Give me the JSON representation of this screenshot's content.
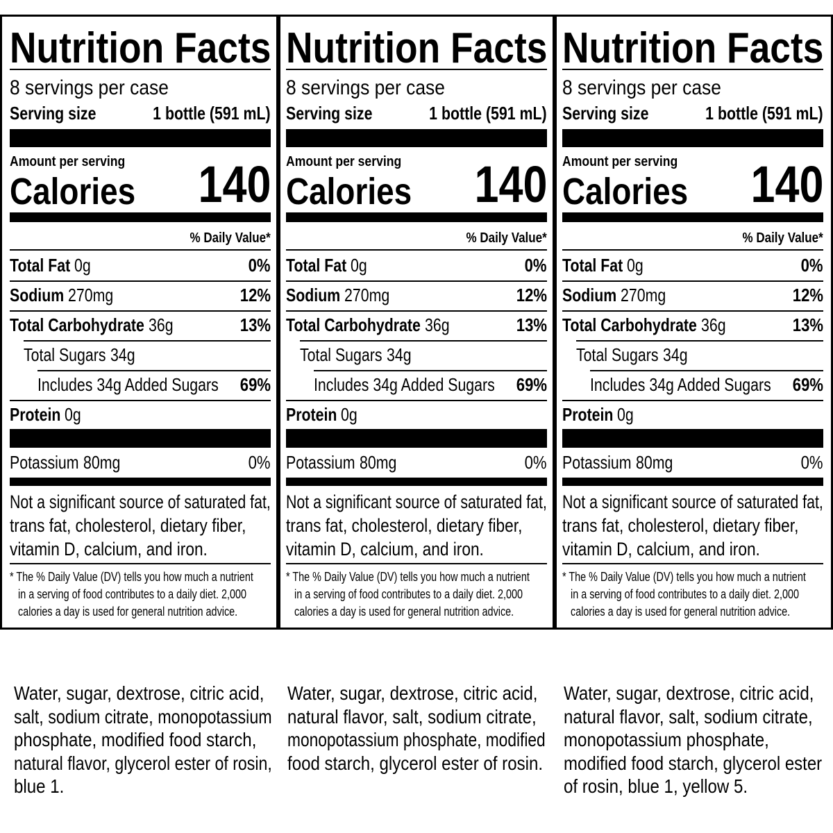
{
  "panels": [
    {
      "title": "Nutrition Facts",
      "servings": "8 servings per case",
      "serving_size_label": "Serving size",
      "serving_size_value": "1 bottle (591 mL)",
      "amount_per_serving": "Amount per serving",
      "calories_label": "Calories",
      "calories_value": 140,
      "daily_value_header": "% Daily Value*",
      "nutrients": [
        {
          "name": "Total Fat",
          "amount": "0g",
          "dv": "0%"
        },
        {
          "name": "Sodium",
          "amount": "270mg",
          "dv": "12%"
        },
        {
          "name": "Total Carbohydrate",
          "amount": "36g",
          "dv": "13%"
        },
        {
          "name": "Total Sugars",
          "amount": "34g"
        },
        {
          "name": "Includes 34g Added Sugars",
          "dv": "69%"
        },
        {
          "name": "Protein",
          "amount": "0g"
        },
        {
          "name": "Potassium",
          "amount": "80mg",
          "dv": "0%"
        }
      ],
      "not_significant": [
        "Not a significant source of saturated fat,",
        "trans fat, cholesterol, dietary fiber,",
        "vitamin D, calcium, and iron."
      ],
      "footnote": [
        "* The % Daily Value (DV) tells you how much a nutrient",
        "in a serving of food contributes to a daily diet. 2,000",
        "calories a day is used for general nutrition advice."
      ],
      "ingredients": [
        "Water, sugar, dextrose, citric acid,",
        "salt, sodium citrate, monopotassium",
        "phosphate, modified food starch,",
        "natural flavor, glycerol ester of rosin,",
        "blue 1."
      ]
    },
    {
      "title": "Nutrition Facts",
      "servings": "8 servings per case",
      "serving_size_label": "Serving size",
      "serving_size_value": "1 bottle (591 mL)",
      "amount_per_serving": "Amount per serving",
      "calories_label": "Calories",
      "calories_value": 140,
      "daily_value_header": "% Daily Value*",
      "nutrients": [
        {
          "name": "Total Fat",
          "amount": "0g",
          "dv": "0%"
        },
        {
          "name": "Sodium",
          "amount": "270mg",
          "dv": "12%"
        },
        {
          "name": "Total Carbohydrate",
          "amount": "36g",
          "dv": "13%"
        },
        {
          "name": "Total Sugars",
          "amount": "34g"
        },
        {
          "name": "Includes 34g Added Sugars",
          "dv": "69%"
        },
        {
          "name": "Protein",
          "amount": "0g"
        },
        {
          "name": "Potassium",
          "amount": "80mg",
          "dv": "0%"
        }
      ],
      "not_significant": [
        "Not a significant source of saturated fat,",
        "trans fat, cholesterol, dietary fiber,",
        "vitamin D, calcium, and iron."
      ],
      "footnote": [
        "* The % Daily Value (DV) tells you how much a nutrient",
        "in a serving of food contributes to a daily diet. 2,000",
        "calories a day is used for general nutrition advice."
      ],
      "ingredients": [
        "Water, sugar, dextrose, citric acid,",
        "natural flavor, salt, sodium citrate,",
        "monopotassium phosphate, modified",
        "food starch, glycerol ester of rosin."
      ]
    },
    {
      "title": "Nutrition Facts",
      "servings": "8 servings per case",
      "serving_size_label": "Serving size",
      "serving_size_value": "1 bottle (591 mL)",
      "amount_per_serving": "Amount per serving",
      "calories_label": "Calories",
      "calories_value": 140,
      "daily_value_header": "% Daily Value*",
      "nutrients": [
        {
          "name": "Total Fat",
          "amount": "0g",
          "dv": "0%"
        },
        {
          "name": "Sodium",
          "amount": "270mg",
          "dv": "12%"
        },
        {
          "name": "Total Carbohydrate",
          "amount": "36g",
          "dv": "13%"
        },
        {
          "name": "Total Sugars",
          "amount": "34g"
        },
        {
          "name": "Includes 34g Added Sugars",
          "dv": "69%"
        },
        {
          "name": "Protein",
          "amount": "0g"
        },
        {
          "name": "Potassium",
          "amount": "80mg",
          "dv": "0%"
        }
      ],
      "not_significant": [
        "Not a significant source of saturated fat,",
        "trans fat, cholesterol, dietary fiber,",
        "vitamin D, calcium, and iron."
      ],
      "footnote": [
        "* The % Daily Value (DV) tells you how much a nutrient",
        "in a serving of food contributes to a daily diet. 2,000",
        "calories a day is used for general nutrition advice."
      ],
      "ingredients": [
        "Water, sugar, dextrose, citric acid,",
        "natural flavor, salt, sodium citrate,",
        "monopotassium phosphate,",
        "modified food starch, glycerol ester",
        "of rosin, blue 1, yellow 5."
      ]
    }
  ]
}
